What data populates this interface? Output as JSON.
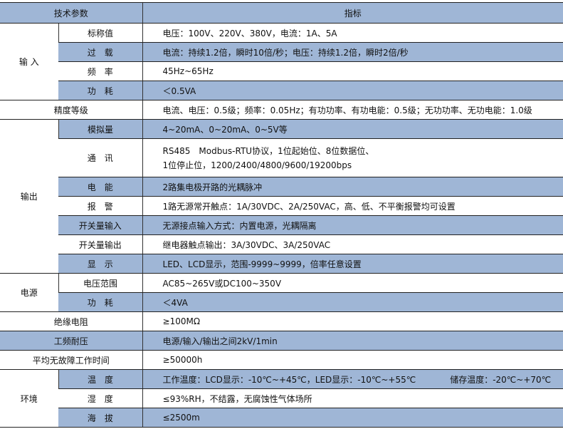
{
  "header": {
    "param": "技术参数",
    "spec": "指标"
  },
  "groups": {
    "input": "输 入",
    "output": "输出",
    "power": "电源",
    "env": "环境"
  },
  "rows": {
    "rated": {
      "label": "标称值",
      "value": "电压：100V、220V、380V，电流：1A、5A"
    },
    "overload": {
      "label": "过　载",
      "value": "电流：持续1.2倍，瞬时10倍/秒；电压：持续1.2倍，瞬时2倍/秒"
    },
    "freq": {
      "label": "频　率",
      "value": "45Hz~65Hz"
    },
    "in_consumption": {
      "label": "功　耗",
      "value": "＜0.5VA"
    },
    "accuracy": {
      "label": "精度等级",
      "value": "电流、电压：0.5级；频率：0.05Hz；有功功率、有功电能：0.5级；无功功率、无功电能：1.0级"
    },
    "analog": {
      "label": "模拟量",
      "value": "4~20mA、0~20mA、0~5V等"
    },
    "comm": {
      "label": "通　讯",
      "value_line1": "RS485　Modbus-RTU协议，1位起始位、8位数据位、",
      "value_line2": "1位停止位，1200/2400/4800/9600/19200bps"
    },
    "energy": {
      "label": "电　能",
      "value": "2路集电极开路的光耦脉冲"
    },
    "alarm": {
      "label": "报　警",
      "value": "1路无源常开触点：1A/30VDC、2A/250VAC，高、低、不平衡报警均可设置"
    },
    "di": {
      "label": "开关量输入",
      "value": "无源接点输入方式：内置电源，光耦隔离"
    },
    "do": {
      "label": "开关量输出",
      "value": "继电器触点输出：3A/30VDC、3A/250VAC"
    },
    "display": {
      "label": "显　示",
      "value": "LED、LCD显示，范围-9999~9999，倍率任意设置"
    },
    "vrange": {
      "label": "电压范围",
      "value": "AC85~265V或DC100~350V"
    },
    "pw_consumption": {
      "label": "功　耗",
      "value": "＜4VA"
    },
    "insulation": {
      "label": "绝缘电阻",
      "value": "≥100MΩ"
    },
    "withstand": {
      "label": "工频耐压",
      "value": "电源/输入/输出之间2kV/1min"
    },
    "mtbf": {
      "label": "平均无故障工作时间",
      "value": "≥50000h"
    },
    "temp": {
      "label": "温　度",
      "value": "工作温度：LCD显示：-10℃~+45℃，LED显示：-10℃~+55℃　　　　储存温度：-20℃~+70℃"
    },
    "humidity": {
      "label": "湿　度",
      "value": "≤93%RH，不结露，无腐蚀性气体场所"
    },
    "altitude": {
      "label": "海　拔",
      "value": "≤2500m"
    }
  },
  "colors": {
    "shade": "#9fb6d6",
    "border": "#222222"
  }
}
